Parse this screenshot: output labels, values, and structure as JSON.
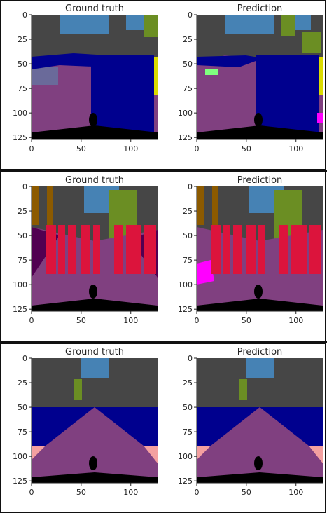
{
  "chart_data": [
    {
      "type": "image-grid",
      "row": 1,
      "subplots": [
        {
          "title": "Ground truth",
          "xticks": [
            "0",
            "50",
            "100"
          ],
          "yticks": [
            "0",
            "25",
            "50",
            "75",
            "100",
            "125"
          ],
          "xlim": [
            0,
            127
          ],
          "ylim": [
            127,
            0
          ]
        },
        {
          "title": "Prediction",
          "xticks": [
            "0",
            "50",
            "100"
          ],
          "yticks": [
            "0",
            "25",
            "50",
            "75",
            "100",
            "125"
          ],
          "xlim": [
            0,
            127
          ],
          "ylim": [
            127,
            0
          ]
        }
      ]
    },
    {
      "type": "image-grid",
      "row": 2,
      "subplots": [
        {
          "title": "Ground truth",
          "xticks": [
            "0",
            "50",
            "100"
          ],
          "yticks": [
            "0",
            "25",
            "50",
            "75",
            "100",
            "125"
          ],
          "xlim": [
            0,
            127
          ],
          "ylim": [
            127,
            0
          ]
        },
        {
          "title": "Prediction",
          "xticks": [
            "0",
            "50",
            "100"
          ],
          "yticks": [
            "0",
            "25",
            "50",
            "75",
            "100",
            "125"
          ],
          "xlim": [
            0,
            127
          ],
          "ylim": [
            127,
            0
          ]
        }
      ]
    },
    {
      "type": "image-grid",
      "row": 3,
      "subplots": [
        {
          "title": "Ground truth",
          "xticks": [
            "0",
            "50",
            "100"
          ],
          "yticks": [
            "0",
            "25",
            "50",
            "75",
            "100",
            "125"
          ],
          "xlim": [
            0,
            127
          ],
          "ylim": [
            127,
            0
          ]
        },
        {
          "title": "Prediction",
          "xticks": [
            "0",
            "50",
            "100"
          ],
          "yticks": [
            "0",
            "25",
            "50",
            "75",
            "100",
            "125"
          ],
          "xlim": [
            0,
            127
          ],
          "ylim": [
            127,
            0
          ]
        }
      ]
    }
  ],
  "colors": {
    "road": "#804080",
    "sky": "#4682b4",
    "building": "#464646",
    "vegetation": "#6b8e23",
    "vehicle": "#00008e",
    "person": "#dc143c",
    "sidewalk": "#f4a0a0",
    "ego_vehicle": "#000000",
    "terrain": "#6a6a9a",
    "pole": "#999999",
    "sign": "#dcdc00",
    "fence": "#8c5a00",
    "ground": "#510051",
    "magenta": "#ff00ff"
  }
}
